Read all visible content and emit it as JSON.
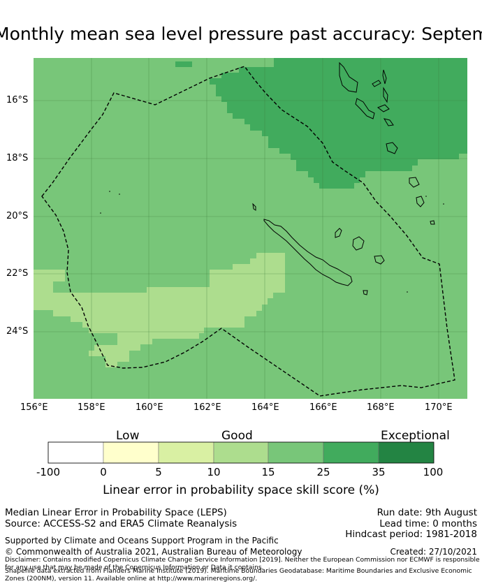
{
  "title": "Monthly mean sea level pressure past accuracy: September",
  "axes": {
    "lat_labels": [
      "16°S",
      "18°S",
      "20°S",
      "22°S",
      "24°S"
    ],
    "lon_labels": [
      "156°E",
      "158°E",
      "160°E",
      "162°E",
      "164°E",
      "166°E",
      "168°E",
      "170°E"
    ]
  },
  "legend": {
    "categories": [
      "Low",
      "Good",
      "Exceptional"
    ],
    "ticks": [
      "-100",
      "0",
      "5",
      "10",
      "15",
      "25",
      "35",
      "100"
    ],
    "colors": [
      "#ffffff",
      "#ffffcc",
      "#d9f0a3",
      "#addd8e",
      "#78c679",
      "#41ab5d",
      "#238443"
    ],
    "label": "Linear error in probability space skill score (%)"
  },
  "footer": {
    "line1": "Median Linear Error in Probability Space (LEPS)",
    "line2": "Source: ACCESS-S2 and ERA5 Climate Reanalysis",
    "run_date": "Run date: 9th August",
    "lead_time": "Lead time: 0 months",
    "hindcast": "Hindcast period: 1981-2018",
    "support": "Supported by Climate and Oceans Support Program in the Pacific",
    "copyright": "© Commonwealth of Australia 2021, Australian Bureau of Meteorology",
    "created": "Created: 27/10/2021",
    "disclaimer": "Disclaimer: Contains modified Copernicus Climate Change Service Information [2019]. Neither the European Commission nor ECMWF is responsible for any use that may be made of the Copernicus Information or Data it contains.",
    "shapefile": "Shapefile data extracted from Flanders Marine Institute (2019). Maritime Boundaries Geodatabase: Maritime Boundaries and Exclusive Economic Zones (200NM), version 11. Available online at http://www.marineregions.org/."
  }
}
